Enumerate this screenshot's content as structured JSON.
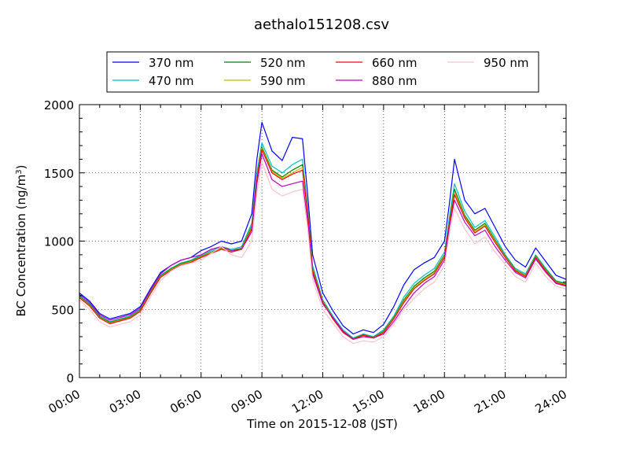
{
  "chart_data": {
    "type": "line",
    "title": "aethalo151208.csv",
    "xlabel": "Time on 2015-12-08 (JST)",
    "ylabel": "BC Concentration (ng/m",
    "ylabel_sup": "3",
    "ylabel_end": ")",
    "xlim": [
      0,
      24
    ],
    "ylim": [
      0,
      2000
    ],
    "grid": true,
    "legend_position": "top-center",
    "x_ticks": [
      {
        "value": 0,
        "label": "00:00"
      },
      {
        "value": 3,
        "label": "03:00"
      },
      {
        "value": 6,
        "label": "06:00"
      },
      {
        "value": 9,
        "label": "09:00"
      },
      {
        "value": 12,
        "label": "12:00"
      },
      {
        "value": 15,
        "label": "15:00"
      },
      {
        "value": 18,
        "label": "18:00"
      },
      {
        "value": 21,
        "label": "21:00"
      },
      {
        "value": 24,
        "label": "24:00"
      }
    ],
    "y_ticks": [
      {
        "value": 0,
        "label": "0"
      },
      {
        "value": 500,
        "label": "500"
      },
      {
        "value": 1000,
        "label": "1000"
      },
      {
        "value": 1500,
        "label": "1500"
      },
      {
        "value": 2000,
        "label": "2000"
      }
    ],
    "x": [
      0,
      0.5,
      1,
      1.5,
      2,
      2.5,
      3,
      3.5,
      4,
      4.5,
      5,
      5.5,
      6,
      6.5,
      7,
      7.5,
      8,
      8.5,
      8.75,
      9,
      9.5,
      10,
      10.5,
      11,
      11.25,
      11.5,
      12,
      12.5,
      13,
      13.5,
      14,
      14.5,
      15,
      15.5,
      16,
      16.5,
      17,
      17.5,
      18,
      18.25,
      18.5,
      19,
      19.5,
      20,
      20.5,
      21,
      21.5,
      22,
      22.5,
      23,
      23.5,
      24
    ],
    "series": [
      {
        "name": "370 nm",
        "color": "#0000ff",
        "values": [
          620,
          560,
          470,
          430,
          450,
          470,
          520,
          650,
          770,
          820,
          860,
          880,
          930,
          960,
          1000,
          980,
          1000,
          1200,
          1600,
          1870,
          1660,
          1590,
          1760,
          1750,
          1350,
          900,
          620,
          490,
          380,
          320,
          350,
          330,
          390,
          520,
          680,
          790,
          840,
          880,
          1000,
          1280,
          1600,
          1300,
          1200,
          1240,
          1100,
          960,
          860,
          810,
          950,
          850,
          750,
          720
        ]
      },
      {
        "name": "470 nm",
        "color": "#00bfbf",
        "values": [
          600,
          540,
          450,
          410,
          430,
          450,
          500,
          630,
          750,
          800,
          840,
          860,
          900,
          930,
          960,
          940,
          960,
          1130,
          1500,
          1720,
          1550,
          1500,
          1560,
          1600,
          1250,
          820,
          570,
          450,
          350,
          290,
          320,
          300,
          350,
          450,
          590,
          690,
          750,
          800,
          920,
          1180,
          1420,
          1220,
          1100,
          1150,
          1030,
          900,
          800,
          760,
          900,
          800,
          710,
          690
        ]
      },
      {
        "name": "520 nm",
        "color": "#008000",
        "values": [
          595,
          535,
          445,
          405,
          425,
          445,
          495,
          625,
          745,
          795,
          835,
          855,
          890,
          920,
          950,
          930,
          950,
          1110,
          1470,
          1690,
          1520,
          1470,
          1520,
          1560,
          1230,
          800,
          560,
          440,
          340,
          285,
          315,
          295,
          340,
          440,
          570,
          670,
          730,
          780,
          900,
          1150,
          1380,
          1190,
          1080,
          1130,
          1010,
          890,
          790,
          750,
          890,
          790,
          705,
          685
        ]
      },
      {
        "name": "590 nm",
        "color": "#bfbf00",
        "values": [
          590,
          530,
          440,
          400,
          420,
          440,
          490,
          620,
          740,
          790,
          830,
          850,
          885,
          915,
          945,
          925,
          945,
          1100,
          1460,
          1680,
          1510,
          1460,
          1500,
          1540,
          1220,
          790,
          555,
          435,
          335,
          282,
          312,
          292,
          335,
          435,
          560,
          660,
          720,
          770,
          890,
          1140,
          1360,
          1180,
          1070,
          1120,
          1000,
          885,
          785,
          745,
          885,
          785,
          700,
          680
        ]
      },
      {
        "name": "660 nm",
        "color": "#ff0000",
        "values": [
          585,
          525,
          435,
          395,
          415,
          435,
          485,
          615,
          735,
          785,
          825,
          845,
          880,
          910,
          940,
          920,
          940,
          1090,
          1450,
          1670,
          1500,
          1450,
          1490,
          1520,
          1210,
          780,
          550,
          430,
          330,
          280,
          310,
          290,
          330,
          430,
          550,
          650,
          710,
          760,
          880,
          1130,
          1340,
          1170,
          1060,
          1110,
          990,
          880,
          780,
          740,
          880,
          780,
          695,
          675
        ]
      },
      {
        "name": "880 nm",
        "color": "#bf00bf",
        "values": [
          610,
          550,
          460,
          420,
          440,
          460,
          510,
          640,
          760,
          820,
          860,
          880,
          900,
          940,
          960,
          930,
          940,
          1070,
          1420,
          1640,
          1450,
          1400,
          1420,
          1440,
          1150,
          760,
          540,
          440,
          340,
          280,
          300,
          290,
          320,
          410,
          520,
          620,
          690,
          740,
          860,
          1110,
          1300,
          1140,
          1040,
          1080,
          960,
          860,
          770,
          730,
          870,
          770,
          690,
          670
        ]
      },
      {
        "name": "950 nm",
        "color": "#ffc0cb",
        "values": [
          570,
          500,
          410,
          370,
          390,
          410,
          460,
          590,
          710,
          780,
          820,
          840,
          860,
          910,
          960,
          900,
          880,
          1000,
          1350,
          1580,
          1380,
          1330,
          1360,
          1380,
          1100,
          720,
          500,
          400,
          300,
          250,
          270,
          260,
          300,
          390,
          500,
          580,
          650,
          700,
          820,
          1060,
          1240,
          1090,
          980,
          1030,
          920,
          830,
          740,
          700,
          840,
          740,
          670,
          650
        ]
      }
    ]
  }
}
